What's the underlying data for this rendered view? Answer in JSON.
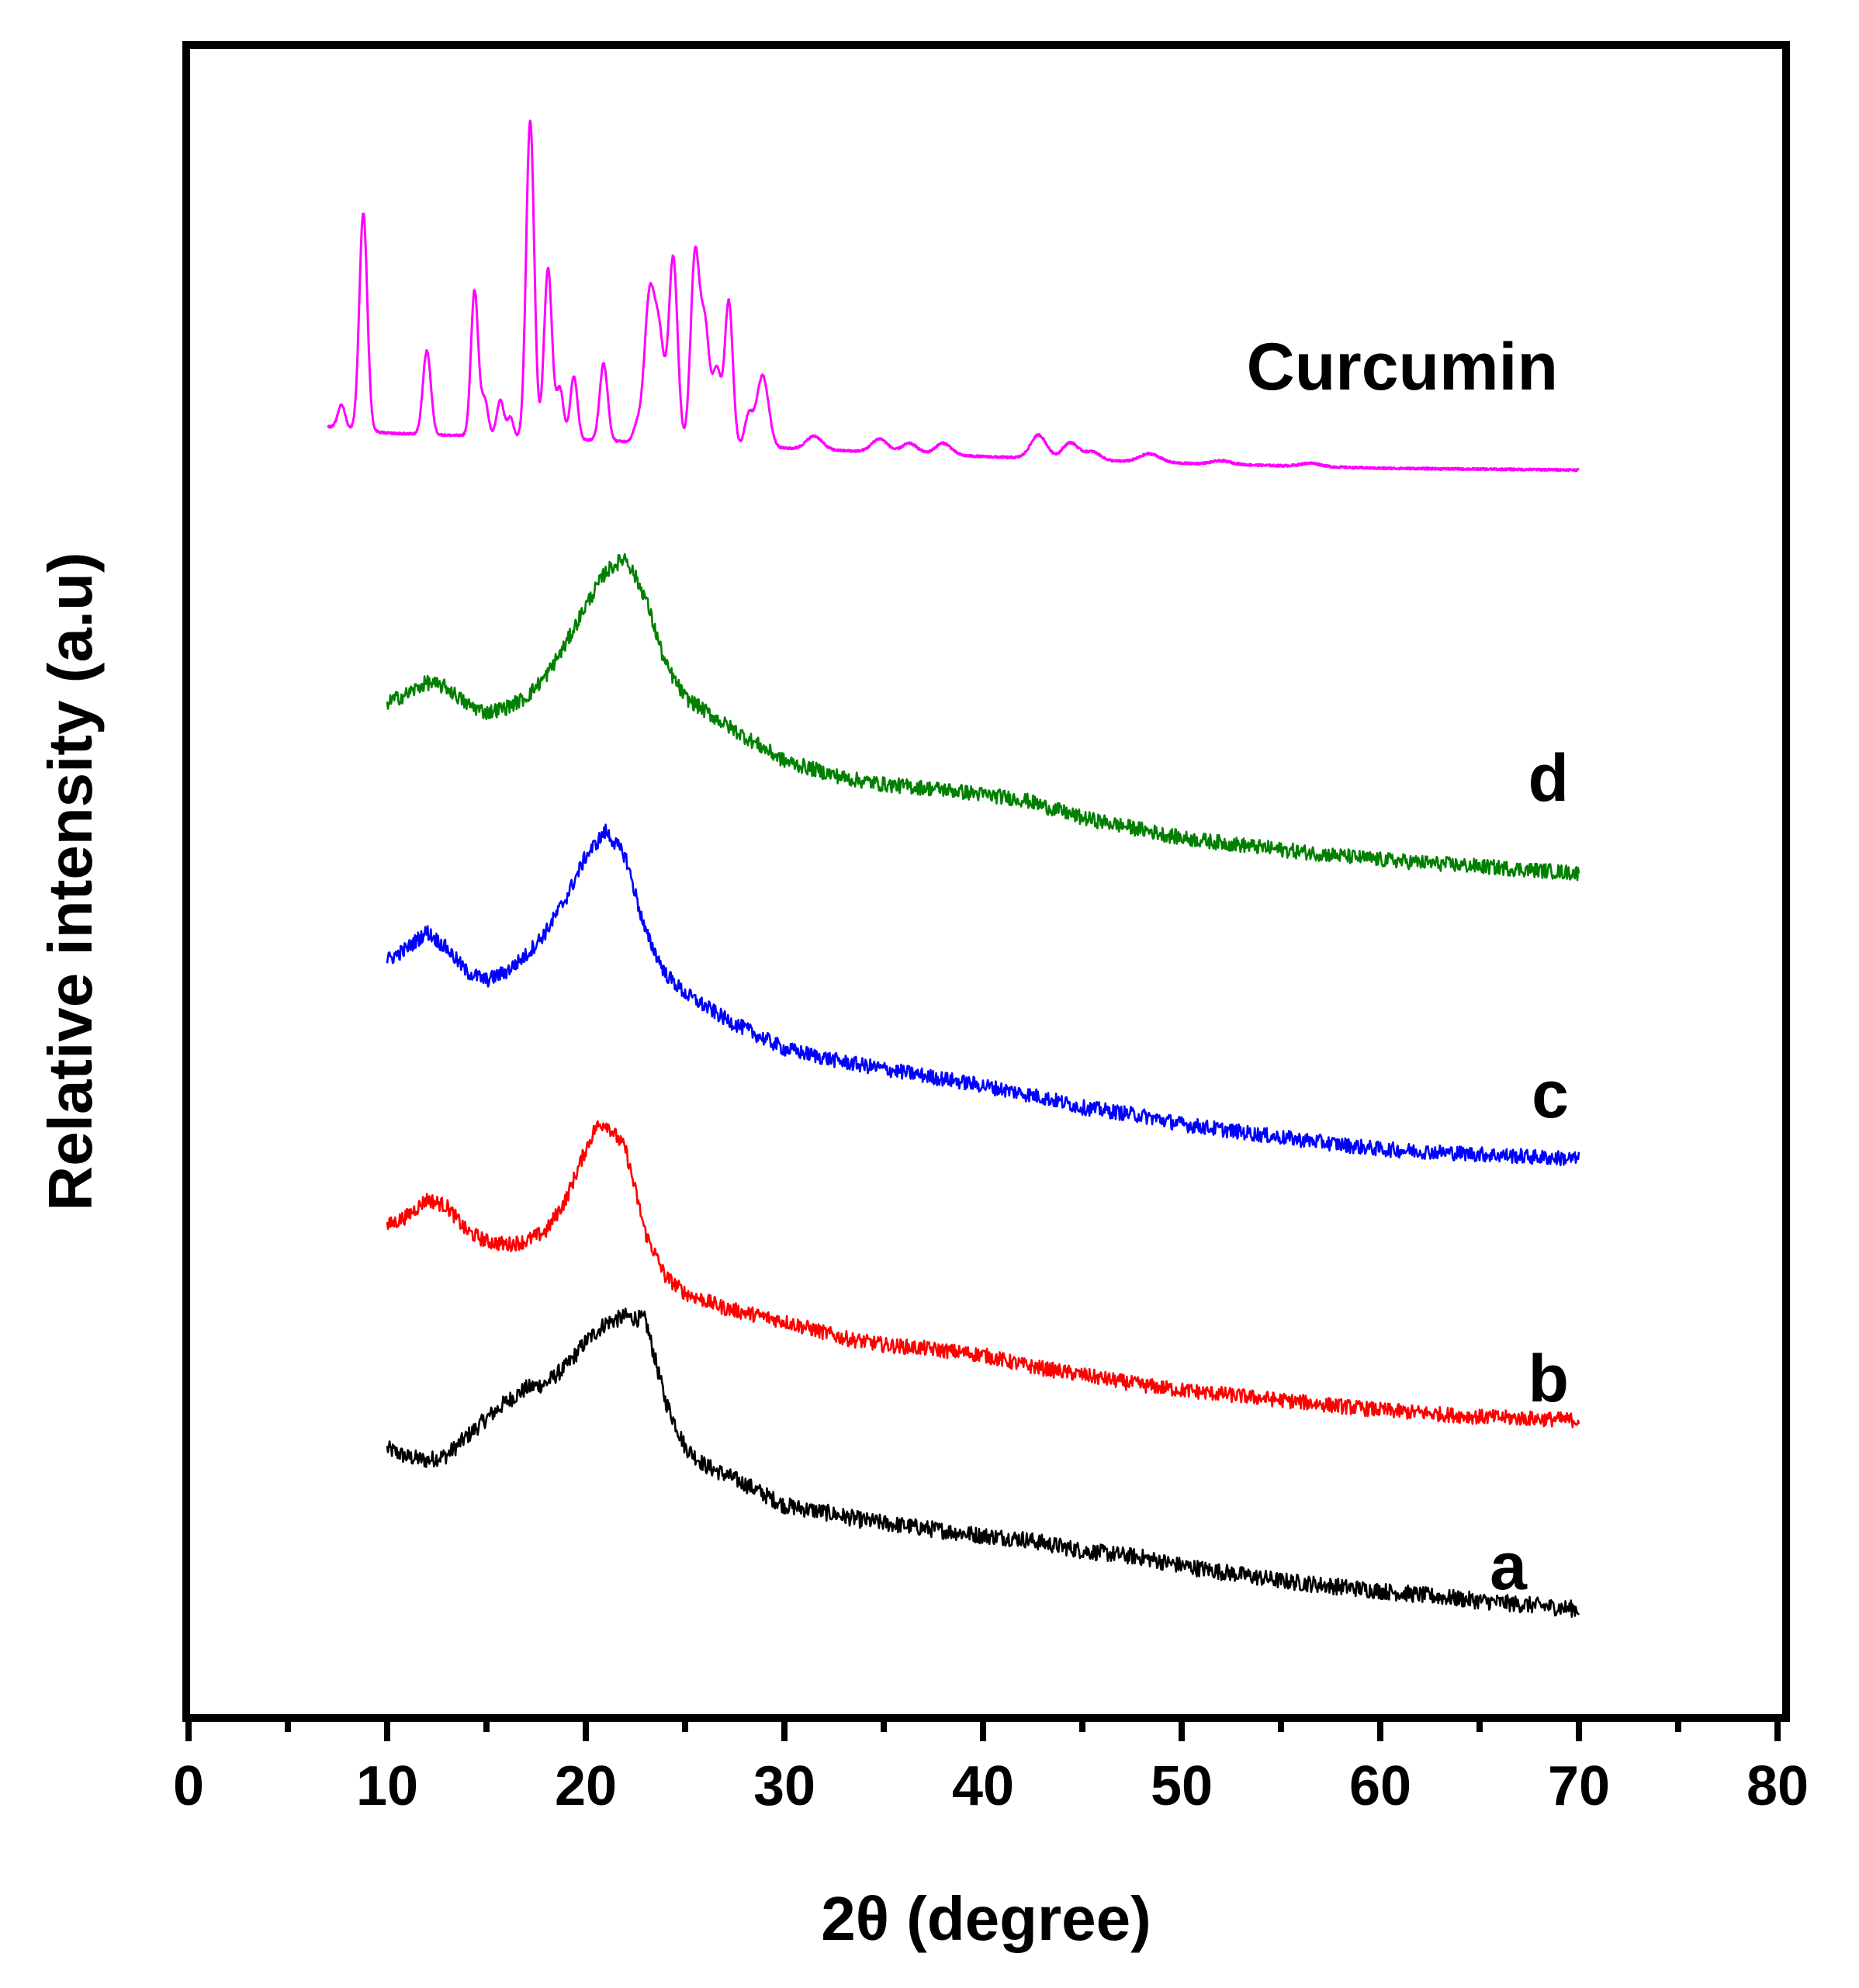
{
  "chart_data": {
    "type": "line",
    "title": "",
    "xlabel": "2θ (degree)",
    "ylabel": "Relative intensity (a.u)",
    "xlim": [
      0,
      80
    ],
    "ylim": [
      0,
      100
    ],
    "x_ticks": [
      "0",
      "10",
      "20",
      "30",
      "40",
      "50",
      "60",
      "70",
      "80"
    ],
    "x_minor_step": 5,
    "y_ticks": [],
    "grid": false,
    "legend": "inline labels at right end of each curve",
    "series": [
      {
        "name": "a",
        "label": "a",
        "color": "#000000",
        "noise": 0.5,
        "points": [
          [
            10,
            16.1
          ],
          [
            11,
            15.6
          ],
          [
            12,
            15.4
          ],
          [
            13,
            15.7
          ],
          [
            14,
            16.8
          ],
          [
            15,
            17.9
          ],
          [
            16,
            18.9
          ],
          [
            17,
            19.7
          ],
          [
            18,
            20.0
          ],
          [
            19,
            21.0
          ],
          [
            20,
            22.5
          ],
          [
            21,
            23.6
          ],
          [
            22,
            24.0
          ],
          [
            23,
            23.8
          ],
          [
            24,
            19.0
          ],
          [
            25,
            16.2
          ],
          [
            26,
            15.1
          ],
          [
            28,
            14.0
          ],
          [
            30,
            12.7
          ],
          [
            32,
            12.3
          ],
          [
            34,
            11.8
          ],
          [
            36,
            11.5
          ],
          [
            38,
            11.2
          ],
          [
            40,
            10.9
          ],
          [
            42,
            10.7
          ],
          [
            45,
            10.0
          ],
          [
            48,
            9.6
          ],
          [
            50,
            9.1
          ],
          [
            55,
            8.2
          ],
          [
            60,
            7.6
          ],
          [
            65,
            7.0
          ],
          [
            70,
            6.5
          ]
        ]
      },
      {
        "name": "b",
        "label": "b",
        "color": "#ff0000",
        "noise": 0.45,
        "points": [
          [
            10,
            29.4
          ],
          [
            11,
            30.0
          ],
          [
            12,
            31.0
          ],
          [
            13,
            30.6
          ],
          [
            14,
            29.1
          ],
          [
            15,
            28.5
          ],
          [
            16,
            28.3
          ],
          [
            17,
            28.5
          ],
          [
            18,
            29.1
          ],
          [
            19,
            31.0
          ],
          [
            20,
            34.0
          ],
          [
            20.5,
            35.3
          ],
          [
            21,
            35.6
          ],
          [
            22,
            34.0
          ],
          [
            23,
            29.0
          ],
          [
            24,
            26.4
          ],
          [
            25,
            25.4
          ],
          [
            27,
            24.5
          ],
          [
            30,
            23.7
          ],
          [
            33,
            22.7
          ],
          [
            35,
            22.3
          ],
          [
            37,
            22.1
          ],
          [
            40,
            21.7
          ],
          [
            42,
            21.1
          ],
          [
            45,
            20.5
          ],
          [
            48,
            19.9
          ],
          [
            50,
            19.6
          ],
          [
            55,
            19.0
          ],
          [
            60,
            18.4
          ],
          [
            65,
            18.0
          ],
          [
            70,
            17.8
          ]
        ]
      },
      {
        "name": "c",
        "label": "c",
        "color": "#0000ff",
        "noise": 0.45,
        "points": [
          [
            10,
            45.3
          ],
          [
            11,
            46.0
          ],
          [
            12,
            47.0
          ],
          [
            13,
            46.0
          ],
          [
            14,
            44.6
          ],
          [
            15,
            44.1
          ],
          [
            16,
            44.6
          ],
          [
            17,
            45.6
          ],
          [
            18,
            47.0
          ],
          [
            19,
            49.0
          ],
          [
            20,
            51.5
          ],
          [
            21,
            53.0
          ],
          [
            22,
            51.5
          ],
          [
            23,
            47.0
          ],
          [
            24,
            44.5
          ],
          [
            25,
            43.3
          ],
          [
            27,
            41.8
          ],
          [
            30,
            40.0
          ],
          [
            33,
            39.2
          ],
          [
            35,
            38.8
          ],
          [
            38,
            38.2
          ],
          [
            40,
            37.8
          ],
          [
            43,
            37.1
          ],
          [
            45,
            36.5
          ],
          [
            48,
            36.0
          ],
          [
            50,
            35.5
          ],
          [
            55,
            34.7
          ],
          [
            60,
            34.0
          ],
          [
            65,
            33.7
          ],
          [
            70,
            33.4
          ]
        ]
      },
      {
        "name": "d",
        "label": "d",
        "color": "#008000",
        "noise": 0.45,
        "points": [
          [
            10,
            60.7
          ],
          [
            11,
            61.2
          ],
          [
            12,
            61.9
          ],
          [
            13,
            61.6
          ],
          [
            14,
            60.6
          ],
          [
            15,
            60.1
          ],
          [
            16,
            60.4
          ],
          [
            17,
            61.0
          ],
          [
            18,
            62.3
          ],
          [
            19,
            64.2
          ],
          [
            20,
            66.5
          ],
          [
            21,
            68.5
          ],
          [
            22,
            69.4
          ],
          [
            23,
            67.0
          ],
          [
            24,
            63.0
          ],
          [
            25,
            61.0
          ],
          [
            27,
            59.4
          ],
          [
            30,
            57.2
          ],
          [
            33,
            56.2
          ],
          [
            35,
            55.8
          ],
          [
            38,
            55.5
          ],
          [
            40,
            55.2
          ],
          [
            42,
            54.9
          ],
          [
            45,
            53.8
          ],
          [
            48,
            53.1
          ],
          [
            50,
            52.6
          ],
          [
            55,
            51.9
          ],
          [
            60,
            51.3
          ],
          [
            65,
            50.9
          ],
          [
            70,
            50.5
          ]
        ]
      },
      {
        "name": "Curcumin",
        "label": "Curcumin",
        "color": "#ff00ff",
        "baseline": [
          [
            7,
            77.2
          ],
          [
            10,
            76.8
          ],
          [
            20,
            76.4
          ],
          [
            30,
            75.9
          ],
          [
            40,
            75.4
          ],
          [
            50,
            75.0
          ],
          [
            60,
            74.7
          ],
          [
            70,
            74.6
          ]
        ],
        "peaks": [
          [
            7.7,
            1.4,
            0.18
          ],
          [
            8.8,
            13.0,
            0.2
          ],
          [
            12.0,
            5.0,
            0.2
          ],
          [
            14.4,
            8.7,
            0.18
          ],
          [
            14.9,
            2.2,
            0.18
          ],
          [
            15.7,
            2.2,
            0.18
          ],
          [
            16.2,
            1.2,
            0.15
          ],
          [
            17.2,
            19.0,
            0.2
          ],
          [
            18.1,
            10.2,
            0.2
          ],
          [
            18.7,
            3.0,
            0.18
          ],
          [
            19.4,
            3.8,
            0.18
          ],
          [
            20.9,
            4.6,
            0.2
          ],
          [
            22.6,
            1.0,
            0.2
          ],
          [
            23.2,
            8.4,
            0.25
          ],
          [
            23.7,
            6.2,
            0.25
          ],
          [
            24.4,
            11.1,
            0.22
          ],
          [
            25.5,
            11.2,
            0.22
          ],
          [
            26.0,
            6.9,
            0.22
          ],
          [
            26.6,
            4.5,
            0.22
          ],
          [
            27.2,
            8.6,
            0.2
          ],
          [
            28.2,
            1.8,
            0.2
          ],
          [
            28.9,
            4.3,
            0.3
          ],
          [
            31.5,
            0.8,
            0.4
          ],
          [
            34.8,
            0.8,
            0.4
          ],
          [
            36.3,
            0.6,
            0.4
          ],
          [
            38.0,
            0.7,
            0.4
          ],
          [
            42.8,
            1.4,
            0.4
          ],
          [
            44.4,
            1.0,
            0.4
          ],
          [
            45.5,
            0.5,
            0.4
          ],
          [
            48.4,
            0.5,
            0.5
          ],
          [
            52.0,
            0.2,
            0.5
          ],
          [
            56.5,
            0.2,
            0.5
          ]
        ]
      }
    ]
  }
}
